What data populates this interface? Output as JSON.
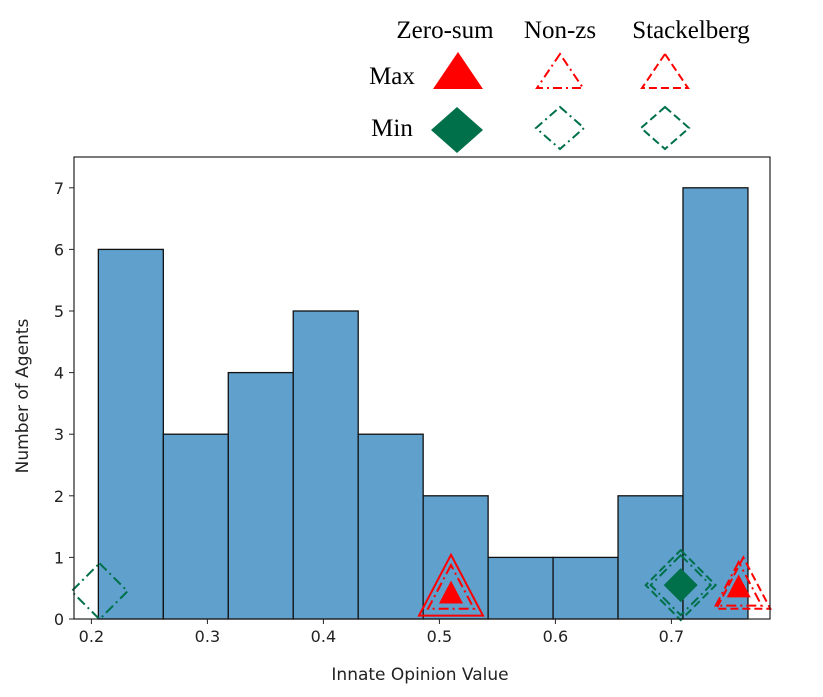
{
  "chart_data": {
    "type": "bar",
    "title": "",
    "xlabel": "Innate Opinion Value",
    "ylabel": "Number of Agents",
    "xlim": [
      0.185,
      0.785
    ],
    "ylim": [
      0,
      7.5
    ],
    "grid": false,
    "bar_color": "#5fa0cc",
    "bins": [
      {
        "x0": 0.206,
        "x1": 0.262,
        "count": 6
      },
      {
        "x0": 0.262,
        "x1": 0.318,
        "count": 3
      },
      {
        "x0": 0.318,
        "x1": 0.374,
        "count": 4
      },
      {
        "x0": 0.374,
        "x1": 0.43,
        "count": 5
      },
      {
        "x0": 0.43,
        "x1": 0.486,
        "count": 3
      },
      {
        "x0": 0.486,
        "x1": 0.542,
        "count": 2
      },
      {
        "x0": 0.542,
        "x1": 0.598,
        "count": 1
      },
      {
        "x0": 0.598,
        "x1": 0.654,
        "count": 1
      },
      {
        "x0": 0.654,
        "x1": 0.71,
        "count": 2
      },
      {
        "x0": 0.71,
        "x1": 0.766,
        "count": 7
      }
    ],
    "x_ticks": [
      0.2,
      0.3,
      0.4,
      0.5,
      0.6,
      0.7
    ],
    "x_tick_labels": [
      "0.2",
      "0.3",
      "0.4",
      "0.5",
      "0.6",
      "0.7"
    ],
    "y_ticks": [
      0,
      1,
      2,
      3,
      4,
      5,
      6,
      7
    ],
    "y_tick_labels": [
      "0",
      "1",
      "2",
      "3",
      "4",
      "5",
      "6",
      "7"
    ],
    "colors": {
      "max": "#ff0000",
      "min": "#00704a"
    },
    "legend": {
      "position": "top-right-outside",
      "columns": [
        "Zero-sum",
        "Non-zs",
        "Stackelberg"
      ],
      "rows": [
        "Max",
        "Min"
      ]
    },
    "markers": [
      {
        "role": "max",
        "game": "zero-sum",
        "x": 0.51,
        "y": 0.4
      },
      {
        "role": "max",
        "game": "non-zs",
        "x": 0.51,
        "y": 0.45
      },
      {
        "role": "max",
        "game": "stackelberg",
        "x": 0.51,
        "y": 0.45
      },
      {
        "role": "max",
        "game": "zero-sum",
        "x": 0.758,
        "y": 0.5
      },
      {
        "role": "max",
        "game": "non-zs",
        "x": 0.758,
        "y": 0.5
      },
      {
        "role": "max",
        "game": "stackelberg",
        "x": 0.762,
        "y": 0.5
      },
      {
        "role": "min",
        "game": "zero-sum",
        "x": 0.708,
        "y": 0.55
      },
      {
        "role": "min",
        "game": "non-zs",
        "x": 0.708,
        "y": 0.55
      },
      {
        "role": "min",
        "game": "stackelberg",
        "x": 0.708,
        "y": 0.55
      },
      {
        "role": "min",
        "game": "non-zs",
        "x": 0.207,
        "y": 0.45
      }
    ]
  }
}
